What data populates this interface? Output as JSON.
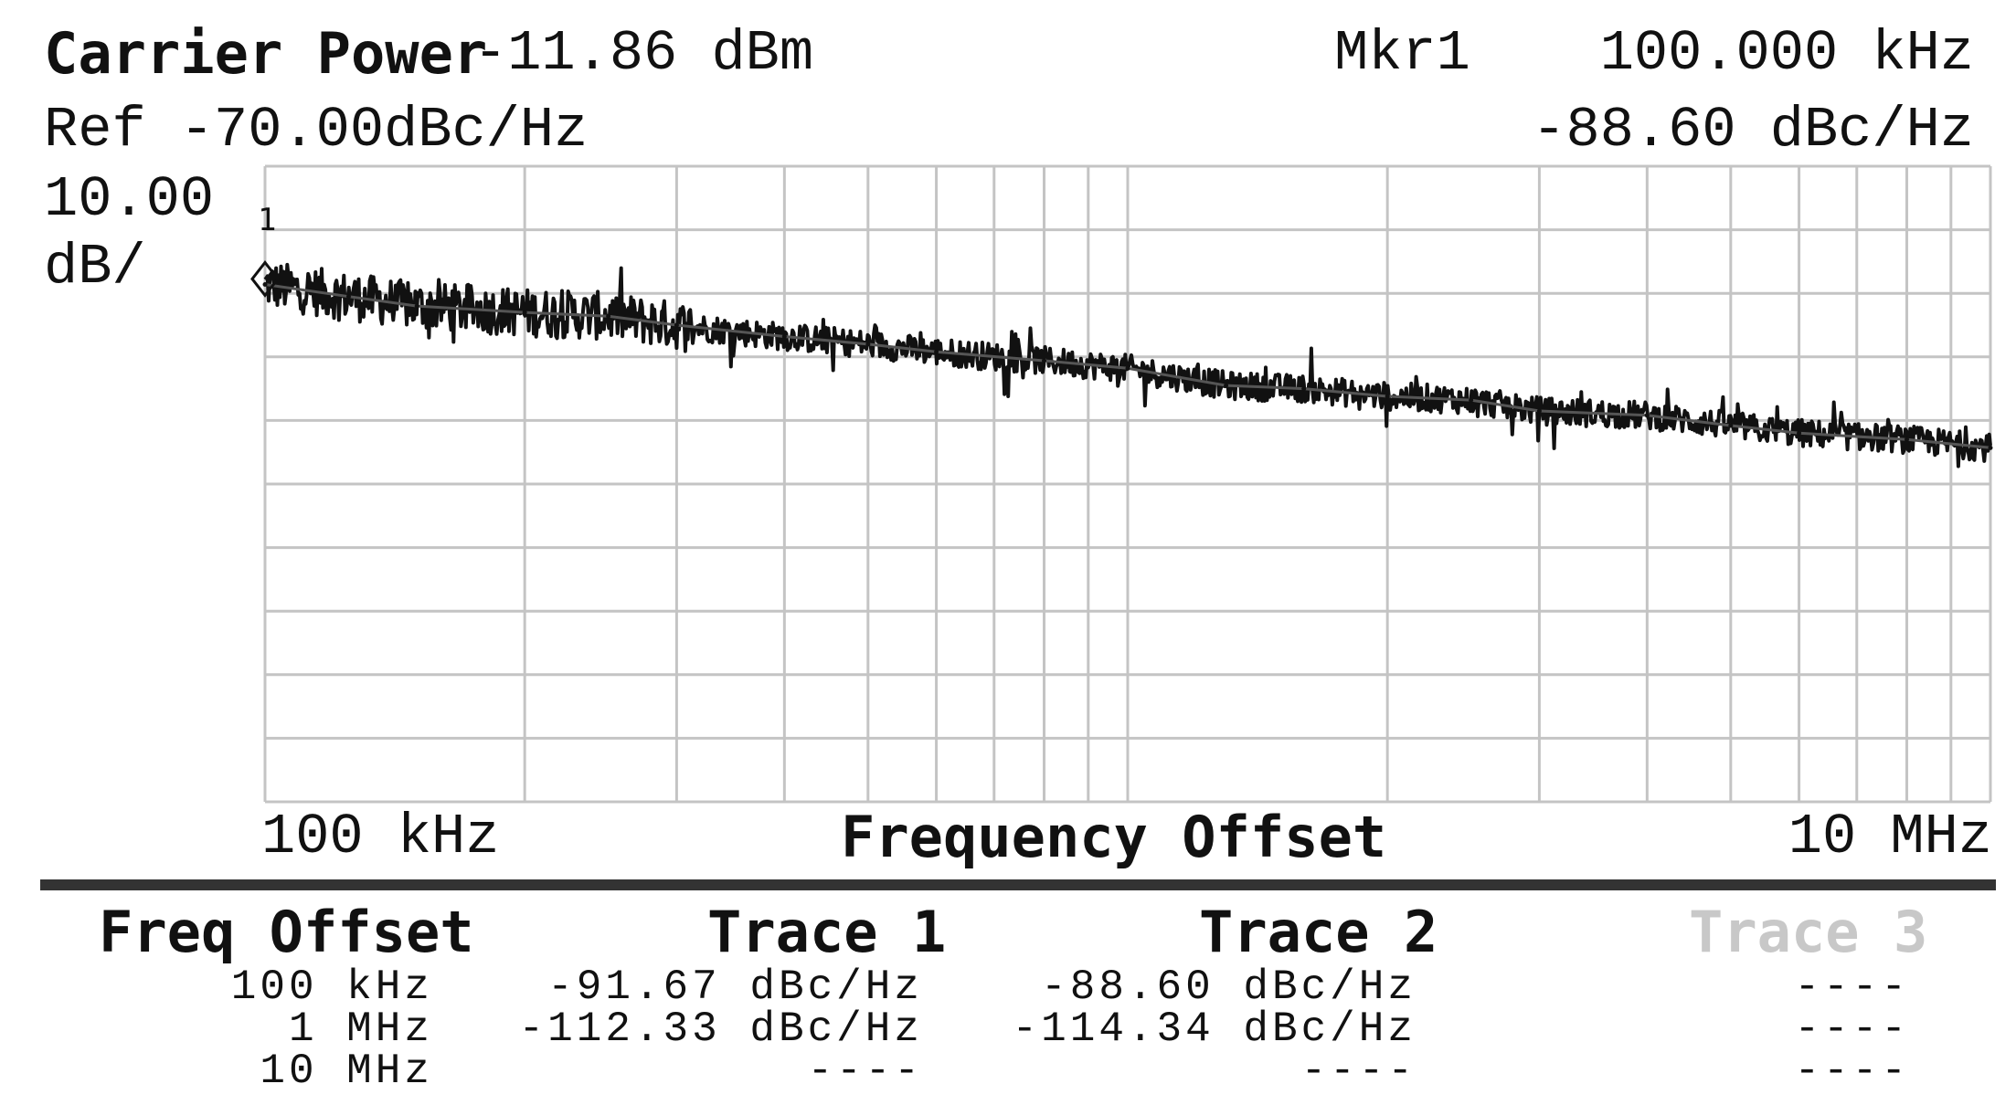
{
  "header": {
    "carrier_label": "Carrier Power",
    "carrier_value": "-11.86 dBm",
    "marker_label": "Mkr1",
    "marker_freq": "100.000 kHz",
    "ref_label": "Ref -70.00dBc/Hz",
    "marker_value": "-88.60 dBc/Hz",
    "scale_value": "10.00",
    "scale_unit": "dB/"
  },
  "chart_data": {
    "type": "line",
    "x_scale": "log",
    "xlim": [
      100000,
      10000000
    ],
    "xlabel": "Frequency Offset",
    "x_tick_labels": [
      "100 kHz",
      "10 MHz"
    ],
    "ref_level": -70,
    "db_per_div": 10,
    "ylim": [
      -170,
      -70
    ],
    "y_unit": "dBc/Hz",
    "grid": true,
    "marker": {
      "label": "1",
      "x": 100000,
      "y": -88.6
    },
    "series": [
      {
        "x": [
          100000,
          125000,
          150000,
          200000,
          250000,
          300000,
          400000,
          500000,
          600000,
          800000,
          1000000,
          1300000,
          1600000,
          2000000,
          2500000,
          3000000,
          4000000,
          5000000,
          6000000,
          8000000,
          10000000
        ],
        "values": [
          -88.6,
          -90.5,
          -92.0,
          -93.0,
          -93.6,
          -95.0,
          -96.8,
          -98.0,
          -99.2,
          -100.6,
          -101.8,
          -104.5,
          -105.0,
          -106.2,
          -106.8,
          -108.5,
          -109.2,
          -110.8,
          -112.0,
          -113.0,
          -114.3
        ]
      }
    ]
  },
  "table": {
    "headers": [
      "Freq Offset",
      "Trace 1",
      "Trace 2",
      "Trace 3"
    ],
    "rows": [
      [
        "100 kHz",
        "-91.67 dBc/Hz",
        "-88.60 dBc/Hz",
        "----"
      ],
      [
        "1 MHz",
        "-112.33 dBc/Hz",
        "-114.34 dBc/Hz",
        "----"
      ],
      [
        "10 MHz",
        "----",
        "----",
        "----"
      ]
    ]
  },
  "colors": {
    "trace": "#111111",
    "grid": "#c4c4c4",
    "inactive": "#c8c8c8"
  }
}
